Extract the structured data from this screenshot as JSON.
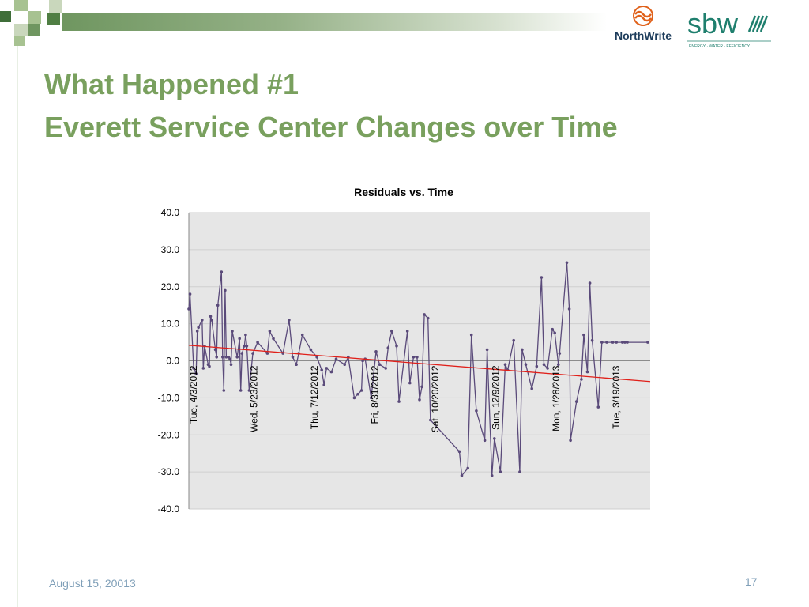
{
  "header": {
    "title_line1": "What Happened #1",
    "title_line2": "Everett Service Center Changes over Time"
  },
  "logos": {
    "northwrite": "NorthWrite",
    "sbw": "sbw",
    "sbw_tagline": "ENERGY · WATER · EFFICIENCY"
  },
  "footer": {
    "date": "August 15, 20013",
    "page_number": "17"
  },
  "colors": {
    "title": "#79a05e",
    "series": "#5a4a7a",
    "trendline": "#e0201a",
    "plot_background": "#e6e6e6"
  },
  "chart_data": {
    "type": "line",
    "title": "Residuals vs. Time",
    "xlabel": "",
    "ylabel": "",
    "ylim": [
      -40,
      40
    ],
    "yticks": [
      "40.0",
      "30.0",
      "20.0",
      "10.0",
      "0.0",
      "-10.0",
      "-20.0",
      "-30.0",
      "-40.0"
    ],
    "xlim": [
      "2012-03-30",
      "2013-04-16"
    ],
    "x_tick_labels": [
      {
        "date": "2012-04-03",
        "label": "Tue, 4/3/2012"
      },
      {
        "date": "2012-05-23",
        "label": "Wed, 5/23/2012"
      },
      {
        "date": "2012-07-12",
        "label": "Thu, 7/12/2012"
      },
      {
        "date": "2012-08-31",
        "label": "Fri, 8/31/2012"
      },
      {
        "date": "2012-10-20",
        "label": "Sat, 10/20/2012"
      },
      {
        "date": "2012-12-09",
        "label": "Sun, 12/9/2012"
      },
      {
        "date": "2013-01-28",
        "label": "Mon, 1/28/2013"
      },
      {
        "date": "2013-03-19",
        "label": "Tue, 3/19/2013"
      }
    ],
    "grid": true,
    "legend": "none",
    "series": [
      {
        "x": [
          "2012-03-30",
          "2012-03-31",
          "2012-04-03",
          "2012-04-05",
          "2012-04-06",
          "2012-04-07",
          "2012-04-10",
          "2012-04-11",
          "2012-04-12",
          "2012-04-15",
          "2012-04-16",
          "2012-04-17",
          "2012-04-18",
          "2012-04-21",
          "2012-04-22",
          "2012-04-23",
          "2012-04-26",
          "2012-04-27",
          "2012-04-28",
          "2012-04-29",
          "2012-04-30",
          "2012-05-02",
          "2012-05-03",
          "2012-05-04",
          "2012-05-05",
          "2012-05-09",
          "2012-05-11",
          "2012-05-12",
          "2012-05-13",
          "2012-05-15",
          "2012-05-16",
          "2012-05-17",
          "2012-05-19",
          "2012-05-22",
          "2012-05-26",
          "2012-06-03",
          "2012-06-05",
          "2012-06-08",
          "2012-06-16",
          "2012-06-21",
          "2012-06-24",
          "2012-06-27",
          "2012-06-29",
          "2012-07-02",
          "2012-07-09",
          "2012-07-14",
          "2012-07-18",
          "2012-07-20",
          "2012-07-22",
          "2012-07-26",
          "2012-07-30",
          "2012-08-06",
          "2012-08-09",
          "2012-08-14",
          "2012-08-17",
          "2012-08-20",
          "2012-08-21",
          "2012-08-23",
          "2012-08-28",
          "2012-09-01",
          "2012-09-04",
          "2012-09-09",
          "2012-09-11",
          "2012-09-14",
          "2012-09-18",
          "2012-09-20",
          "2012-09-27",
          "2012-09-29",
          "2012-10-02",
          "2012-10-05",
          "2012-10-07",
          "2012-10-09",
          "2012-10-11",
          "2012-10-14",
          "2012-10-16",
          "2012-11-09",
          "2012-11-11",
          "2012-11-16",
          "2012-11-19",
          "2012-11-23",
          "2012-11-30",
          "2012-12-02",
          "2012-12-06",
          "2012-12-08",
          "2012-12-13",
          "2012-12-17",
          "2012-12-19",
          "2012-12-24",
          "2012-12-29",
          "2012-12-31",
          "2013-01-03",
          "2013-01-08",
          "2013-01-12",
          "2013-01-16",
          "2013-01-18",
          "2013-01-21",
          "2013-01-25",
          "2013-01-27",
          "2013-01-30",
          "2013-01-31",
          "2013-02-06",
          "2013-02-08",
          "2013-02-09",
          "2013-02-14",
          "2013-02-18",
          "2013-02-20",
          "2013-02-23",
          "2013-02-25",
          "2013-02-27",
          "2013-03-04",
          "2013-03-07",
          "2013-03-11",
          "2013-03-16",
          "2013-03-19",
          "2013-03-24",
          "2013-03-26",
          "2013-03-28",
          "2013-04-14"
        ],
        "values": [
          14,
          18,
          -2,
          -3.5,
          8,
          9,
          11,
          -2,
          4,
          -1,
          -1.5,
          12,
          11,
          3,
          1,
          15,
          24,
          1,
          -8,
          19,
          1,
          1,
          0.5,
          -1,
          8,
          1,
          6,
          -8,
          2,
          4,
          7,
          4,
          -8,
          2,
          5,
          2,
          8,
          6,
          2,
          11,
          1,
          -1,
          2,
          7,
          3,
          1,
          -2.5,
          -6.5,
          -2,
          -3,
          0.5,
          -1,
          1,
          -10,
          -9,
          -8,
          0,
          0.5,
          -10,
          2.5,
          -1,
          -2,
          3.5,
          8,
          4,
          -11,
          8,
          -6,
          1,
          1,
          -10.5,
          -7,
          12.5,
          11.5,
          -16,
          -24.5,
          -31,
          -29,
          7,
          -13.5,
          -21.5,
          3,
          -31,
          -21,
          -30,
          -1,
          -2.5,
          5.5,
          -30,
          3,
          -1,
          -7.5,
          -1.5,
          22.5,
          -1,
          -2,
          8.5,
          7.5,
          -1,
          2,
          26.5,
          14,
          -21.5,
          -11,
          -5,
          7,
          -3,
          21,
          5.5,
          -12.5,
          5,
          5,
          5,
          5,
          5,
          5,
          5,
          5
        ]
      }
    ],
    "trendline": {
      "x": [
        "2012-03-30",
        "2013-04-16"
      ],
      "values": [
        4.2,
        -5.6
      ]
    }
  }
}
